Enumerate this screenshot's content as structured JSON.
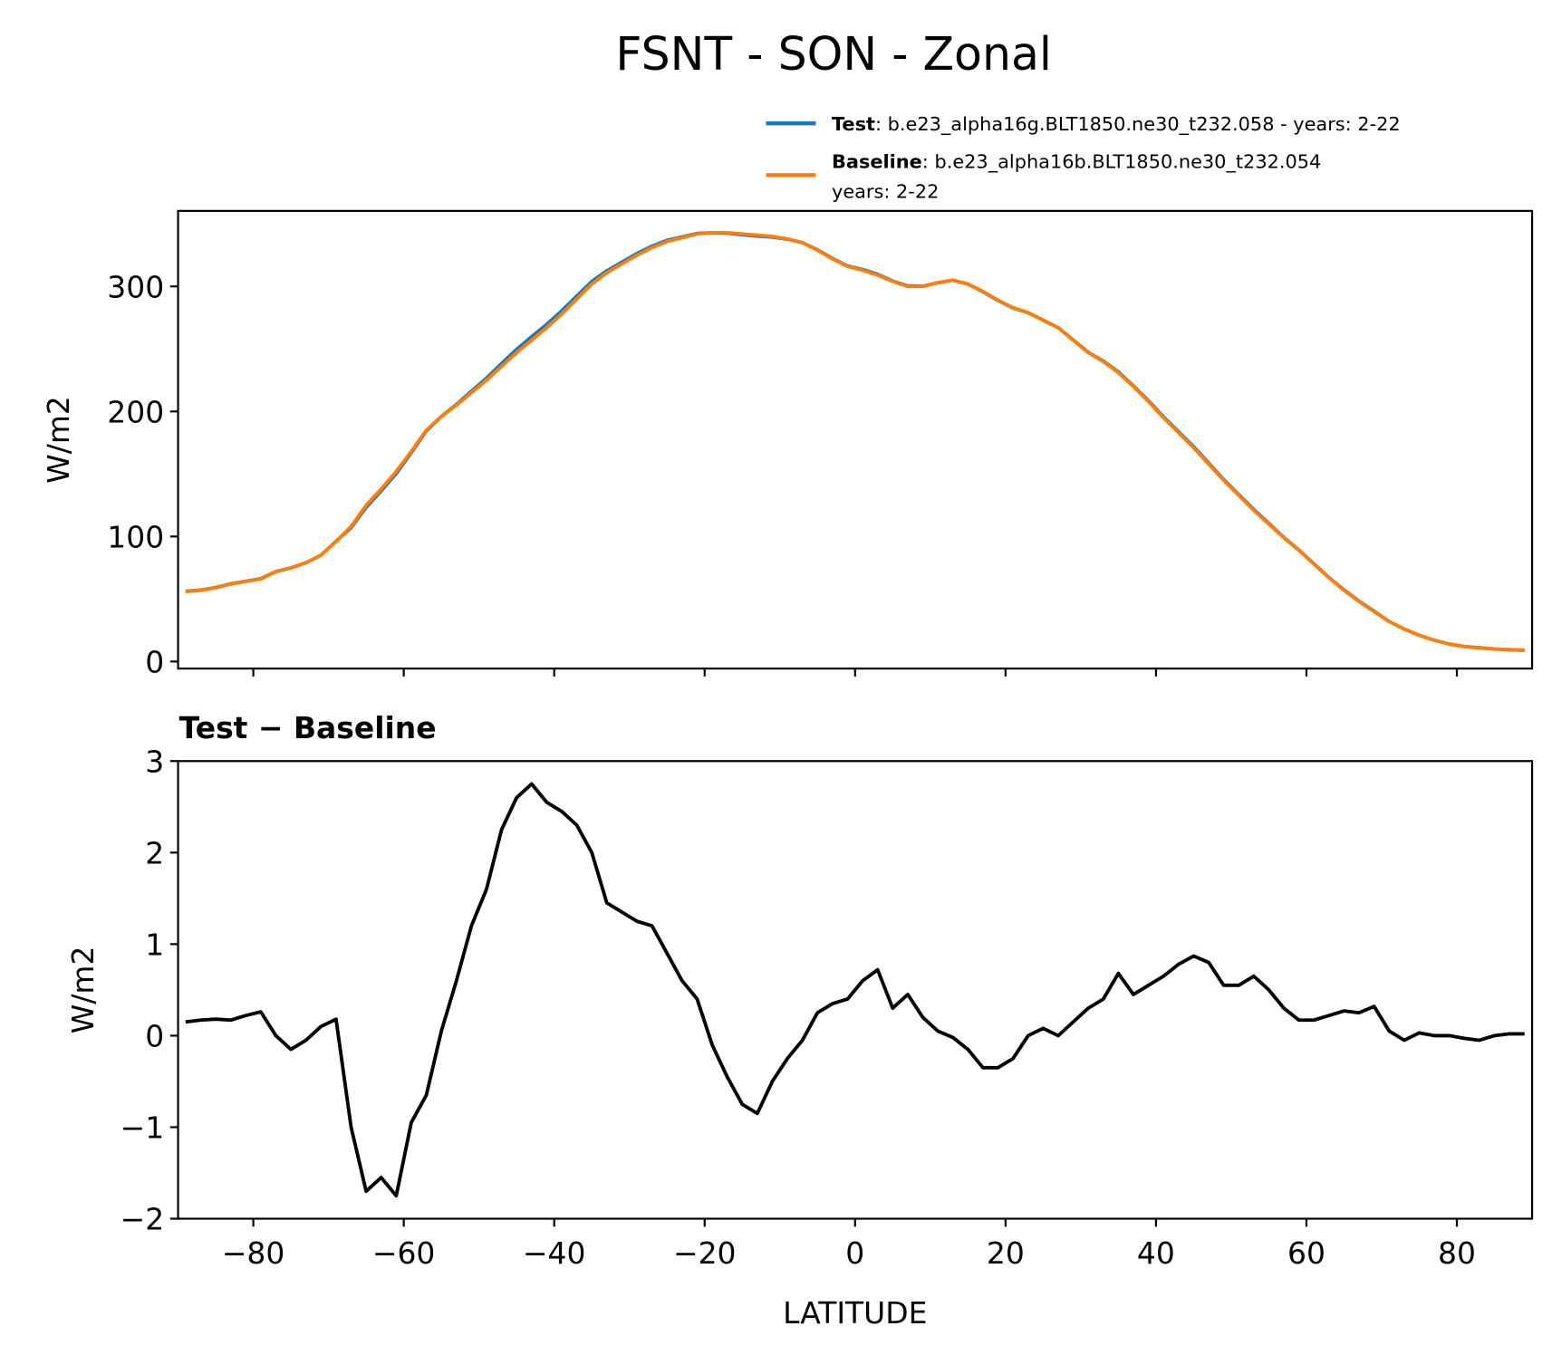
{
  "chart_data": [
    {
      "type": "line",
      "title": "FSNT - SON - Zonal",
      "ylabel": "W/m2",
      "x": [
        -89,
        -87,
        -85,
        -83,
        -81,
        -79,
        -77,
        -75,
        -73,
        -71,
        -69,
        -67,
        -65,
        -63,
        -61,
        -59,
        -57,
        -55,
        -53,
        -51,
        -49,
        -47,
        -45,
        -43,
        -41,
        -39,
        -37,
        -35,
        -33,
        -31,
        -29,
        -27,
        -25,
        -23,
        -21,
        -19,
        -17,
        -15,
        -13,
        -11,
        -9,
        -7,
        -5,
        -3,
        -1,
        1,
        3,
        5,
        7,
        9,
        11,
        13,
        15,
        17,
        19,
        21,
        23,
        25,
        27,
        29,
        31,
        33,
        35,
        37,
        39,
        41,
        43,
        45,
        47,
        49,
        51,
        53,
        55,
        57,
        59,
        61,
        63,
        65,
        67,
        69,
        71,
        73,
        75,
        77,
        79,
        81,
        83,
        85,
        87,
        89
      ],
      "series": [
        {
          "name": "Test",
          "description": [
            ": b.e23_alpha16g.BLT1850.ne30_t232.058 - years: 2-22"
          ],
          "color": "#1f77b4",
          "values": [
            56.2,
            57.2,
            59.2,
            62.2,
            64.2,
            66.3,
            72,
            74.9,
            79,
            85.1,
            96.2,
            107,
            123.3,
            136.5,
            150.3,
            167,
            184.4,
            196,
            205.6,
            216.2,
            226.6,
            238.3,
            249.6,
            259.8,
            269.6,
            280.5,
            292.3,
            304,
            312.5,
            319.4,
            326.3,
            332.2,
            336.9,
            339.6,
            342.4,
            342.9,
            342.6,
            341.3,
            340.2,
            339.5,
            337.8,
            335,
            329.3,
            322.4,
            316.4,
            313.6,
            309.7,
            304.3,
            300.5,
            300.2,
            303,
            305,
            301.9,
            295.7,
            288.7,
            282.8,
            279,
            273.1,
            267,
            257.2,
            247.3,
            240.4,
            231.7,
            220.5,
            208.6,
            195.7,
            183.8,
            171.9,
            158.8,
            145.6,
            133.6,
            121.7,
            110.5,
            99.3,
            89.2,
            78.2,
            67.2,
            57.3,
            48.3,
            40.3,
            32,
            26,
            21,
            17,
            14,
            12,
            11,
            10,
            9.5,
            9
          ]
        },
        {
          "name": "Baseline",
          "description": [
            ": b.e23_alpha16b.BLT1850.ne30_t232.054",
            "years: 2-22"
          ],
          "color": "#ff7f0e",
          "values": [
            56,
            57,
            59,
            62,
            64,
            66,
            72,
            75,
            79,
            85,
            96,
            108,
            125,
            138,
            152,
            168,
            185,
            196,
            205,
            215,
            225,
            236,
            247,
            257,
            267,
            278,
            290,
            302,
            311,
            318,
            325,
            331,
            336,
            339,
            342,
            343,
            343,
            342,
            341,
            340,
            338,
            335,
            329,
            322,
            316,
            313,
            309,
            304,
            300,
            300,
            303,
            305,
            302,
            296,
            289,
            283,
            279,
            273,
            267,
            257,
            247,
            240,
            231,
            220,
            208,
            195,
            183,
            171,
            158,
            145,
            133,
            121,
            110,
            99,
            89,
            78,
            67,
            57,
            48,
            40,
            32,
            26,
            21,
            17,
            14,
            12,
            11,
            10,
            9.5,
            9
          ]
        }
      ],
      "xlim": [
        -90,
        90
      ],
      "ylim": [
        -5.6,
        360.4
      ],
      "xticks": [
        -80,
        -60,
        -40,
        -20,
        0,
        20,
        40,
        60,
        80
      ],
      "yticks": [
        0,
        100,
        200,
        300
      ]
    },
    {
      "type": "line",
      "title": "Test − Baseline",
      "ylabel": "W/m2",
      "xlabel": "LATITUDE",
      "color": "#000000",
      "x": [
        -89,
        -87,
        -85,
        -83,
        -81,
        -79,
        -77,
        -75,
        -73,
        -71,
        -69,
        -67,
        -65,
        -63,
        -61,
        -59,
        -57,
        -55,
        -53,
        -51,
        -49,
        -47,
        -45,
        -43,
        -41,
        -39,
        -37,
        -35,
        -33,
        -31,
        -29,
        -27,
        -25,
        -23,
        -21,
        -19,
        -17,
        -15,
        -13,
        -11,
        -9,
        -7,
        -5,
        -3,
        -1,
        1,
        3,
        5,
        7,
        9,
        11,
        13,
        15,
        17,
        19,
        21,
        23,
        25,
        27,
        29,
        31,
        33,
        35,
        37,
        39,
        41,
        43,
        45,
        47,
        49,
        51,
        53,
        55,
        57,
        59,
        61,
        63,
        65,
        67,
        69,
        71,
        73,
        75,
        77,
        79,
        81,
        83,
        85,
        87,
        89
      ],
      "values": [
        0.15,
        0.17,
        0.18,
        0.17,
        0.22,
        0.26,
        0.0,
        -0.15,
        -0.05,
        0.1,
        0.18,
        -1.0,
        -1.7,
        -1.55,
        -1.75,
        -0.95,
        -0.65,
        0.05,
        0.6,
        1.2,
        1.6,
        2.25,
        2.6,
        2.75,
        2.55,
        2.45,
        2.3,
        2.0,
        1.45,
        1.35,
        1.25,
        1.2,
        0.9,
        0.6,
        0.4,
        -0.1,
        -0.45,
        -0.75,
        -0.85,
        -0.5,
        -0.25,
        -0.05,
        0.25,
        0.35,
        0.4,
        0.6,
        0.72,
        0.3,
        0.45,
        0.2,
        0.05,
        -0.02,
        -0.15,
        -0.35,
        -0.35,
        -0.25,
        0.0,
        0.08,
        0.0,
        0.15,
        0.3,
        0.4,
        0.68,
        0.45,
        0.55,
        0.65,
        0.78,
        0.87,
        0.8,
        0.55,
        0.55,
        0.65,
        0.5,
        0.3,
        0.17,
        0.17,
        0.22,
        0.27,
        0.25,
        0.32,
        0.05,
        -0.05,
        0.03,
        0.0,
        0.0,
        -0.03,
        -0.05,
        0.0,
        0.02,
        0.02
      ],
      "xlim": [
        -90,
        90
      ],
      "ylim": [
        -2,
        3
      ],
      "xticks": [
        {
          "value": -80,
          "label": "−80"
        },
        {
          "value": -60,
          "label": "−60"
        },
        {
          "value": -40,
          "label": "−40"
        },
        {
          "value": -20,
          "label": "−20"
        },
        0,
        20,
        40,
        60,
        80
      ],
      "yticks": [
        {
          "value": -2,
          "label": "−2"
        },
        {
          "value": -1,
          "label": "−1"
        },
        0,
        1,
        2,
        3
      ]
    }
  ]
}
